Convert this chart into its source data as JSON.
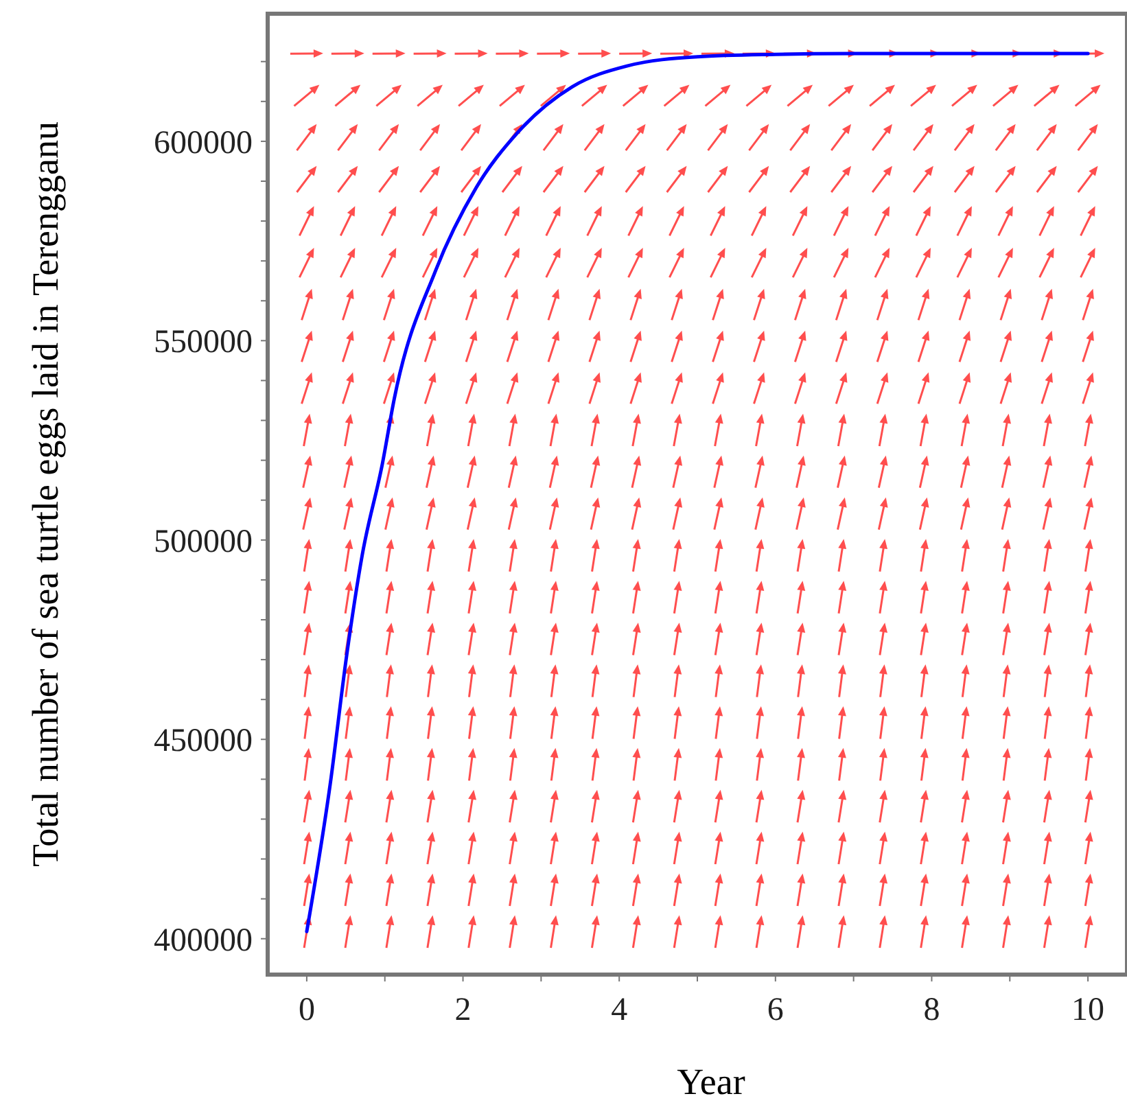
{
  "chart_data": {
    "type": "line",
    "xlabel": "Year",
    "ylabel": "Total number of sea turtle eggs laid in Terengganu",
    "xlim": [
      -0.5,
      10.5
    ],
    "ylim": [
      391000,
      632000
    ],
    "xticks": [
      0,
      {
        "value": 1,
        "label": null
      },
      2,
      {
        "value": 3,
        "label": null
      },
      4,
      {
        "value": 5,
        "label": null
      },
      6,
      {
        "value": 7,
        "label": null
      },
      8,
      {
        "value": 9,
        "label": null
      },
      10
    ],
    "yticks": [
      400000,
      {
        "value": 410000,
        "label": null
      },
      {
        "value": 420000,
        "label": null
      },
      {
        "value": 430000,
        "label": null
      },
      {
        "value": 440000,
        "label": null
      },
      450000,
      {
        "value": 460000,
        "label": null
      },
      {
        "value": 470000,
        "label": null
      },
      {
        "value": 480000,
        "label": null
      },
      {
        "value": 490000,
        "label": null
      },
      500000,
      {
        "value": 510000,
        "label": null
      },
      {
        "value": 520000,
        "label": null
      },
      {
        "value": 530000,
        "label": null
      },
      {
        "value": 540000,
        "label": null
      },
      550000,
      {
        "value": 560000,
        "label": null
      },
      {
        "value": 570000,
        "label": null
      },
      {
        "value": 580000,
        "label": null
      },
      {
        "value": 590000,
        "label": null
      },
      600000,
      {
        "value": 610000,
        "label": null
      },
      {
        "value": 620000,
        "label": null
      }
    ],
    "grid": false,
    "line_style": "solid",
    "series": [
      {
        "color": "#0000ff",
        "x": [
          0,
          0.3,
          0.51,
          0.71,
          0.97,
          1.12,
          1.65,
          2.17,
          2.7,
          3.4,
          4.1,
          5,
          6,
          7,
          8,
          9,
          10
        ],
        "values": [
          401800,
          438700,
          470900,
          496200,
          519300,
          535400,
          567600,
          588400,
          602200,
          613700,
          618900,
          621200,
          621800,
          622000,
          622000,
          622000,
          622000
        ]
      }
    ]
  }
}
